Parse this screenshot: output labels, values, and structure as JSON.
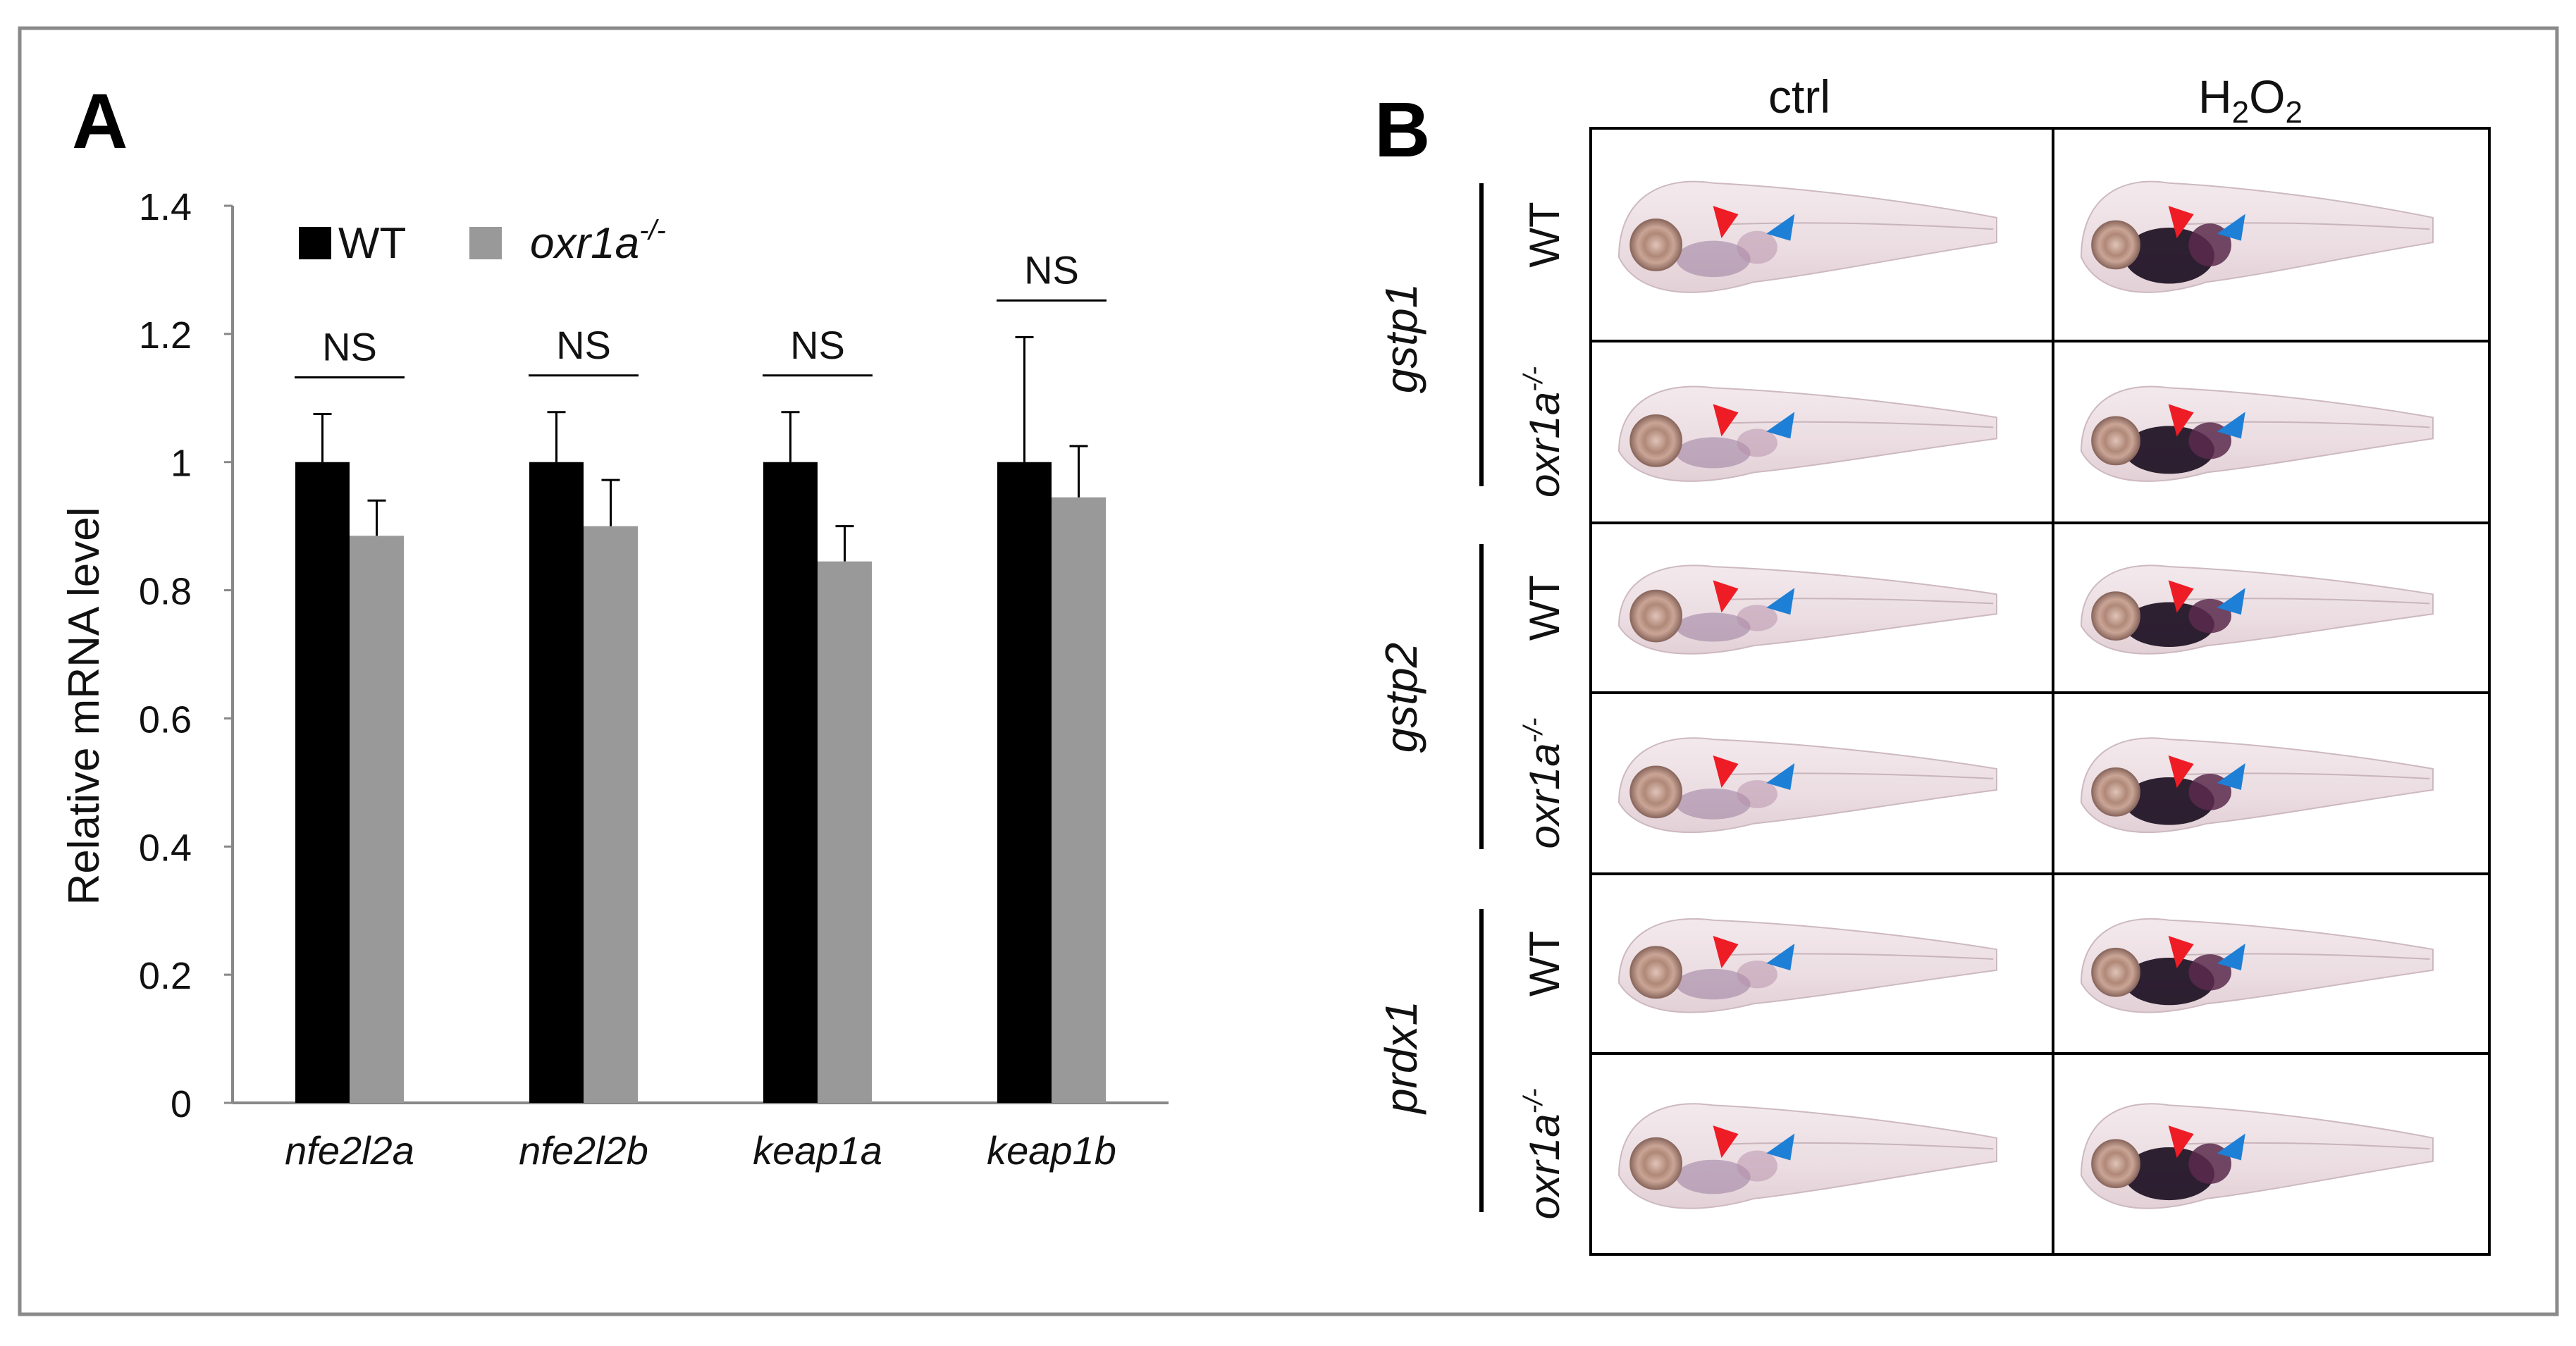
{
  "panel_a_label": "A",
  "panel_b_label": "B",
  "chart_data": {
    "type": "bar",
    "title": "",
    "xlabel": "",
    "ylabel": "Relative mRNA level",
    "ylim": [
      0,
      1.4
    ],
    "yticks": [
      "0",
      "0.2",
      "0.4",
      "0.6",
      "0.8",
      "1",
      "1.2",
      "1.4"
    ],
    "categories": [
      "nfe2l2a",
      "nfe2l2b",
      "keap1a",
      "keap1b"
    ],
    "series": [
      {
        "name": "WT",
        "color": "#000000",
        "values": [
          1.0,
          1.0,
          1.0,
          1.0
        ],
        "errors": [
          0.075,
          0.078,
          0.078,
          0.195
        ]
      },
      {
        "name": "oxr1a",
        "name_sup": "-/-",
        "color": "#999999",
        "values": [
          0.885,
          0.9,
          0.845,
          0.945
        ],
        "errors": [
          0.055,
          0.072,
          0.055,
          0.08
        ]
      }
    ],
    "significance": [
      {
        "category": "nfe2l2a",
        "label": "NS"
      },
      {
        "category": "nfe2l2b",
        "label": "NS"
      },
      {
        "category": "keap1a",
        "label": "NS"
      },
      {
        "category": "keap1b",
        "label": "NS"
      }
    ],
    "legend_position": "top-left"
  },
  "panel_b": {
    "col_headers": {
      "ctrl": "ctrl",
      "h2o2_main": "H",
      "h2o2_sub1": "2",
      "h2o2_mid": "O",
      "h2o2_sub2": "2"
    },
    "genes": [
      "gstp1",
      "gstp2",
      "prdx1"
    ],
    "genotype_wt": "WT",
    "genotype_mut": "oxr1a",
    "genotype_mut_sup": "-/-",
    "arrow_colors": {
      "red": "#ee1c25",
      "blue": "#1e7fd6"
    }
  }
}
